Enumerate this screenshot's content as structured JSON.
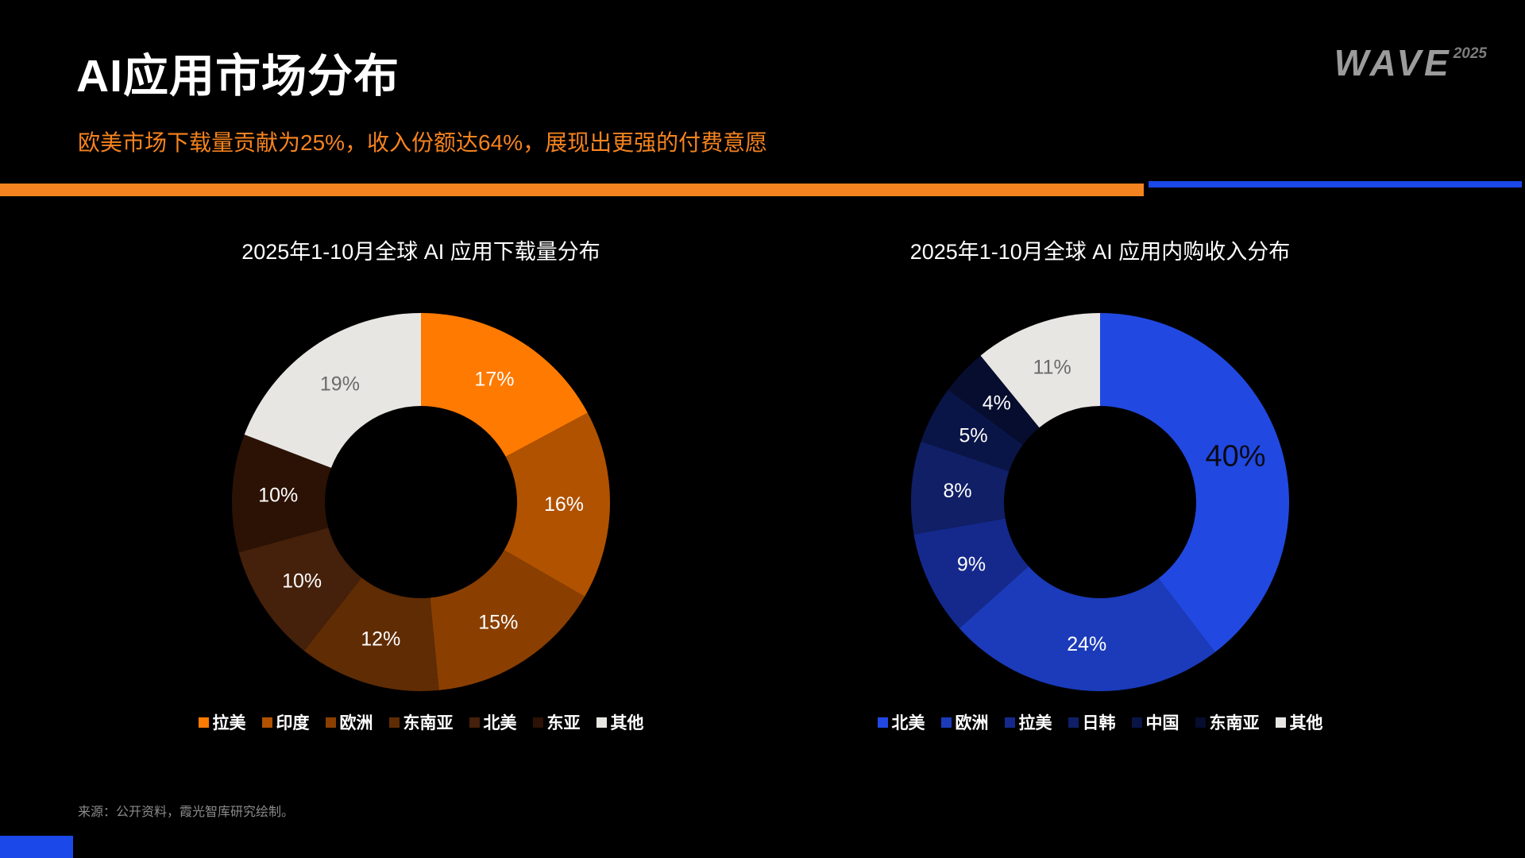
{
  "page": {
    "title": "AI应用市场分布",
    "subtitle": "欧美市场下载量贡献为25%，收入份额达64%，展现出更强的付费意愿",
    "source": "来源：公开资料，霞光智库研究绘制。",
    "logo": {
      "brand": "WAVE",
      "year": "2025"
    }
  },
  "theme": {
    "background": "#000000",
    "accent_orange": "#f5831f",
    "accent_blue": "#1b48e8",
    "title_color": "#ffffff",
    "source_color": "#8a8a8a"
  },
  "chart_data": [
    {
      "type": "pie",
      "subtype": "donut",
      "title": "2025年1-10月全球 AI 应用下载量分布",
      "labels": [
        "拉美",
        "印度",
        "欧洲",
        "东南亚",
        "北美",
        "东亚",
        "其他"
      ],
      "values": [
        17,
        16,
        15,
        12,
        10,
        10,
        19
      ],
      "unit": "%",
      "colors": [
        "#ff7a00",
        "#b05200",
        "#8a3f00",
        "#5f2c04",
        "#45200a",
        "#2b1204",
        "#e8e6e2"
      ],
      "label_colors": [
        "#ffffff",
        "#ffffff",
        "#ffffff",
        "#ffffff",
        "#ffffff",
        "#ffffff",
        "#6b6b6b"
      ],
      "start_angle_deg": 0,
      "legend_position": "bottom"
    },
    {
      "type": "pie",
      "subtype": "donut",
      "title": "2025年1-10月全球 AI 应用内购收入分布",
      "labels": [
        "北美",
        "欧洲",
        "拉美",
        "日韩",
        "中国",
        "东南亚",
        "其他"
      ],
      "values": [
        40,
        24,
        9,
        8,
        5,
        4,
        11
      ],
      "unit": "%",
      "colors": [
        "#2149e1",
        "#1b3bba",
        "#15298c",
        "#101f66",
        "#0a1547",
        "#060d2e",
        "#e8e6e2"
      ],
      "label_colors": [
        "#0a0a14",
        "#ffffff",
        "#ffffff",
        "#ffffff",
        "#ffffff",
        "#ffffff",
        "#6b6b6b"
      ],
      "emphasis_label_index": 0,
      "start_angle_deg": 0,
      "legend_position": "bottom"
    }
  ]
}
